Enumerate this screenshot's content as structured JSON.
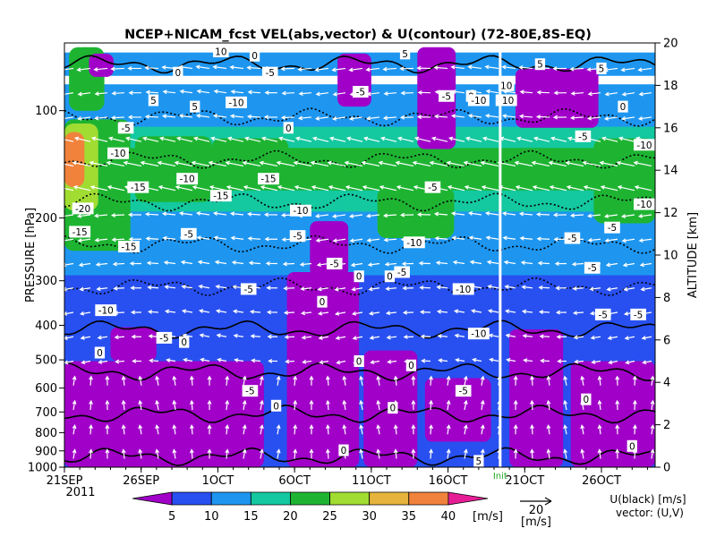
{
  "chart_data": {
    "type": "heatmap",
    "title": "NCEP+NICAM_fcst VEL(abs,vector) & U(contour)  (72-80E,8S-EQ)",
    "xlabel": "",
    "ylabel": "PRESSURE [hPa]",
    "ylabel_right": "ALTITUDE [km]",
    "x_ticks": [
      "21SEP",
      "26SEP",
      "1OCT",
      "6OCT",
      "11OCT",
      "16OCT",
      "21OCT",
      "26OCT"
    ],
    "x_year": "2011",
    "x_range_days": [
      0,
      38.5
    ],
    "forecast_marker_label": "Init",
    "forecast_marker_day": 28.4,
    "y_ticks_pressure": [
      100,
      200,
      300,
      400,
      500,
      600,
      700,
      800,
      900,
      1000
    ],
    "y_ticks_altitude": [
      0,
      2,
      4,
      6,
      8,
      10,
      12,
      14,
      16,
      18,
      20
    ],
    "y_range_altitude_km": [
      0,
      20
    ],
    "colorbar": {
      "levels": [
        5,
        10,
        15,
        20,
        25,
        30,
        35,
        40
      ],
      "unit": "[m/s]",
      "colors": [
        "#a000c8",
        "#2850f0",
        "#1e96f0",
        "#14c8a0",
        "#1eb432",
        "#a0dc32",
        "#e6b43c",
        "#f0823c",
        "#e61e96"
      ]
    },
    "vector_reference": {
      "value": "20",
      "unit": "[m/s]"
    },
    "legend_note": [
      "U(black) [m/s]",
      "vector: (U,V)"
    ],
    "contour_labels": [
      "-20",
      "-15",
      "-10",
      "-5",
      "0",
      "5",
      "10"
    ],
    "bands": [
      {
        "alt_km": 19.0,
        "speed_ms": 14,
        "u": 5
      },
      {
        "alt_km": 17.5,
        "speed_ms": 12,
        "u": 0
      },
      {
        "alt_km": 16.5,
        "speed_ms": 13,
        "u": -5
      },
      {
        "alt_km": 15.5,
        "speed_ms": 18,
        "u": -10
      },
      {
        "alt_km": 14.5,
        "speed_ms": 22,
        "u": -15
      },
      {
        "alt_km": 13.5,
        "speed_ms": 20,
        "u": -15
      },
      {
        "alt_km": 12.5,
        "speed_ms": 16,
        "u": -10
      },
      {
        "alt_km": 11.5,
        "speed_ms": 13,
        "u": -10
      },
      {
        "alt_km": 10.5,
        "speed_ms": 12,
        "u": -5
      },
      {
        "alt_km": 9.5,
        "speed_ms": 10,
        "u": -5
      },
      {
        "alt_km": 8.5,
        "speed_ms": 9,
        "u": -5
      },
      {
        "alt_km": 7.5,
        "speed_ms": 8,
        "u": -5
      },
      {
        "alt_km": 6.5,
        "speed_ms": 7,
        "u": 0
      },
      {
        "alt_km": 5.5,
        "speed_ms": 6,
        "u": 0
      },
      {
        "alt_km": 4.5,
        "speed_ms": 5,
        "u": 0
      },
      {
        "alt_km": 3.5,
        "speed_ms": 6,
        "u": 0
      },
      {
        "alt_km": 2.5,
        "speed_ms": 7,
        "u": 0
      },
      {
        "alt_km": 1.5,
        "speed_ms": 8,
        "u": 0
      },
      {
        "alt_km": 0.5,
        "speed_ms": 7,
        "u": 0
      }
    ],
    "contour_label_points": [
      {
        "day": 10.2,
        "alt_km": 19.6,
        "text": "10"
      },
      {
        "day": 28.8,
        "alt_km": 18.0,
        "text": "10"
      },
      {
        "day": 5.8,
        "alt_km": 17.3,
        "text": "5"
      },
      {
        "day": 8.5,
        "alt_km": 17.0,
        "text": "5"
      },
      {
        "day": 22.2,
        "alt_km": 19.5,
        "text": "5"
      },
      {
        "day": 35.0,
        "alt_km": 18.8,
        "text": "5"
      },
      {
        "day": 31.0,
        "alt_km": 19.0,
        "text": "5"
      },
      {
        "day": 26.5,
        "alt_km": 17.5,
        "text": "0"
      },
      {
        "day": 12.4,
        "alt_km": 19.4,
        "text": "0"
      },
      {
        "day": 7.4,
        "alt_km": 18.6,
        "text": "0"
      },
      {
        "day": 14.6,
        "alt_km": 16.0,
        "text": "0"
      },
      {
        "day": 36.4,
        "alt_km": 17.0,
        "text": "0"
      },
      {
        "day": 4.0,
        "alt_km": 16.0,
        "text": "-5"
      },
      {
        "day": 13.4,
        "alt_km": 18.6,
        "text": "-5"
      },
      {
        "day": 19.3,
        "alt_km": 17.7,
        "text": "-5"
      },
      {
        "day": 24.9,
        "alt_km": 17.5,
        "text": "-5"
      },
      {
        "day": 33.8,
        "alt_km": 15.6,
        "text": "-5"
      },
      {
        "day": 24.0,
        "alt_km": 13.2,
        "text": "-5"
      },
      {
        "day": 11.2,
        "alt_km": 17.2,
        "text": "-10"
      },
      {
        "day": 3.5,
        "alt_km": 14.8,
        "text": "-10"
      },
      {
        "day": 27.0,
        "alt_km": 17.3,
        "text": "-10"
      },
      {
        "day": 28.8,
        "alt_km": 17.3,
        "text": "-10"
      },
      {
        "day": 37.8,
        "alt_km": 15.2,
        "text": "-10"
      },
      {
        "day": 8.0,
        "alt_km": 13.6,
        "text": "-10"
      },
      {
        "day": 4.8,
        "alt_km": 13.2,
        "text": "-15"
      },
      {
        "day": 13.3,
        "alt_km": 13.6,
        "text": "-15"
      },
      {
        "day": 10.2,
        "alt_km": 12.8,
        "text": "-15"
      },
      {
        "day": 1.2,
        "alt_km": 12.2,
        "text": "-20"
      },
      {
        "day": 1.0,
        "alt_km": 11.1,
        "text": "-15"
      },
      {
        "day": 15.4,
        "alt_km": 12.1,
        "text": "-10"
      },
      {
        "day": 4.2,
        "alt_km": 10.4,
        "text": "-15"
      },
      {
        "day": 15.2,
        "alt_km": 10.9,
        "text": "-5"
      },
      {
        "day": 8.1,
        "alt_km": 11.0,
        "text": "-5"
      },
      {
        "day": 22.8,
        "alt_km": 10.6,
        "text": "-10"
      },
      {
        "day": 17.6,
        "alt_km": 9.6,
        "text": "-5"
      },
      {
        "day": 19.2,
        "alt_km": 9.0,
        "text": "0"
      },
      {
        "day": 21.2,
        "alt_km": 9.0,
        "text": "0"
      },
      {
        "day": 22.0,
        "alt_km": 9.2,
        "text": "-5"
      },
      {
        "day": 33.1,
        "alt_km": 10.8,
        "text": "-5"
      },
      {
        "day": 34.4,
        "alt_km": 9.4,
        "text": "-5"
      },
      {
        "day": 35.7,
        "alt_km": 11.3,
        "text": "-5"
      },
      {
        "day": 37.8,
        "alt_km": 12.4,
        "text": "-10"
      },
      {
        "day": 26.0,
        "alt_km": 8.4,
        "text": "-10"
      },
      {
        "day": 12.0,
        "alt_km": 8.4,
        "text": "-5"
      },
      {
        "day": 16.8,
        "alt_km": 7.8,
        "text": "0"
      },
      {
        "day": 2.7,
        "alt_km": 7.4,
        "text": "-10"
      },
      {
        "day": 35.1,
        "alt_km": 7.2,
        "text": "-5"
      },
      {
        "day": 37.4,
        "alt_km": 7.2,
        "text": "-5"
      },
      {
        "day": 27.0,
        "alt_km": 6.3,
        "text": "-10"
      },
      {
        "day": 6.5,
        "alt_km": 6.1,
        "text": "-5"
      },
      {
        "day": 7.8,
        "alt_km": 5.9,
        "text": "0"
      },
      {
        "day": 2.3,
        "alt_km": 5.4,
        "text": "0"
      },
      {
        "day": 19.2,
        "alt_km": 5.0,
        "text": "0"
      },
      {
        "day": 22.6,
        "alt_km": 4.8,
        "text": "0"
      },
      {
        "day": 12.1,
        "alt_km": 3.6,
        "text": "-5"
      },
      {
        "day": 26.0,
        "alt_km": 3.6,
        "text": "-5"
      },
      {
        "day": 34.0,
        "alt_km": 3.2,
        "text": "0"
      },
      {
        "day": 13.8,
        "alt_km": 2.9,
        "text": "0"
      },
      {
        "day": 21.4,
        "alt_km": 2.8,
        "text": "0"
      },
      {
        "day": 37.0,
        "alt_km": 1.0,
        "text": "0"
      },
      {
        "day": 18.2,
        "alt_km": 0.8,
        "text": "0"
      },
      {
        "day": 27.0,
        "alt_km": 0.3,
        "text": "5"
      }
    ],
    "purple_zones": [
      {
        "day": [
          0,
          13
        ],
        "alt_km": [
          0,
          5
        ]
      },
      {
        "day": [
          3,
          6
        ],
        "alt_km": [
          5,
          6.6
        ]
      },
      {
        "day": [
          14.5,
          19.2
        ],
        "alt_km": [
          0,
          9.2
        ]
      },
      {
        "day": [
          16,
          18.5
        ],
        "alt_km": [
          9,
          11.6
        ]
      },
      {
        "day": [
          19.5,
          23
        ],
        "alt_km": [
          0,
          5.5
        ]
      },
      {
        "day": [
          23.5,
          27.8
        ],
        "alt_km": [
          1.2,
          4.2
        ]
      },
      {
        "day": [
          29,
          32.5
        ],
        "alt_km": [
          0,
          6.5
        ]
      },
      {
        "day": [
          33,
          38.5
        ],
        "alt_km": [
          0,
          5
        ]
      },
      {
        "day": [
          29.4,
          34.8
        ],
        "alt_km": [
          16,
          18.8
        ]
      },
      {
        "day": [
          17.8,
          20
        ],
        "alt_km": [
          17,
          19.5
        ]
      },
      {
        "day": [
          1.6,
          3.2
        ],
        "alt_km": [
          18.4,
          19.5
        ]
      },
      {
        "day": [
          23,
          25.5
        ],
        "alt_km": [
          15,
          19.8
        ]
      }
    ],
    "green_zones": [
      {
        "day": [
          0,
          4.3
        ],
        "alt_km": [
          10.2,
          16.4
        ]
      },
      {
        "day": [
          0.3,
          2.6
        ],
        "alt_km": [
          16.8,
          19.8
        ]
      },
      {
        "day": [
          4.6,
          9.6
        ],
        "alt_km": [
          12.5,
          15.6
        ]
      },
      {
        "day": [
          9.6,
          14.6
        ],
        "alt_km": [
          13.2,
          15.5
        ]
      },
      {
        "day": [
          20.4,
          25.4
        ],
        "alt_km": [
          10.8,
          13.2
        ]
      },
      {
        "day": [
          34.5,
          38.5
        ],
        "alt_km": [
          11.5,
          15.5
        ]
      }
    ],
    "strong_zones": [
      {
        "day": [
          0,
          1.3
        ],
        "alt_km": [
          13.2,
          15.8
        ],
        "speed_ms": 37
      },
      {
        "day": [
          0,
          2.2
        ],
        "alt_km": [
          12.1,
          16.2
        ],
        "speed_ms": 29
      },
      {
        "day": [
          0,
          3.6
        ],
        "alt_km": [
          11.2,
          16.3
        ],
        "speed_ms": 24
      }
    ]
  }
}
